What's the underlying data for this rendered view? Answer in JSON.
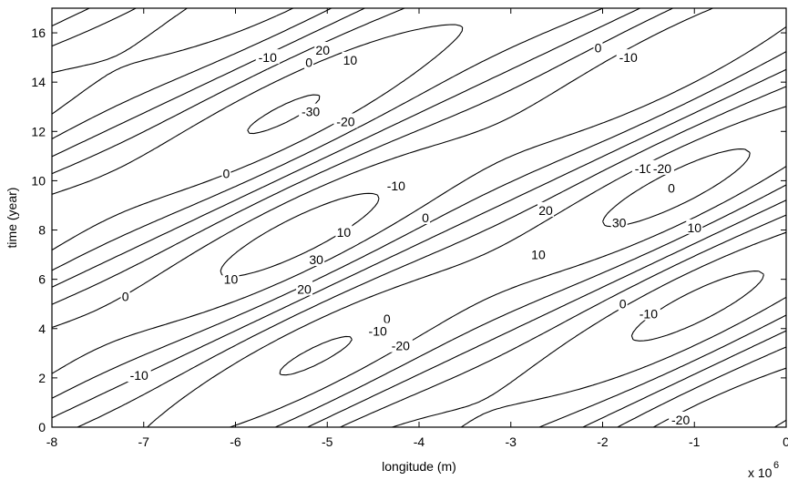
{
  "chart_data": {
    "type": "contour",
    "title": "",
    "xlabel": "longitude (m)",
    "ylabel": "time (year)",
    "x_scale_note": "x 10",
    "x_scale_exponent": "6",
    "xlim": [
      -8,
      0
    ],
    "ylim": [
      0,
      17
    ],
    "xticks": [
      "-8",
      "-7",
      "-6",
      "-5",
      "-4",
      "-3",
      "-2",
      "-1",
      "0"
    ],
    "yticks": [
      "0",
      "2",
      "4",
      "6",
      "8",
      "10",
      "12",
      "14",
      "16"
    ],
    "grid": false,
    "legend": "none",
    "line_styles": {
      "positive_and_zero": "solid",
      "negative": "dashed"
    },
    "contour_levels": [
      -30,
      -20,
      -10,
      0,
      10,
      20,
      30
    ],
    "labels": [
      {
        "text": "20",
        "x": -5.05,
        "y": 15.3
      },
      {
        "text": "0",
        "x": -5.2,
        "y": 14.8
      },
      {
        "text": "10",
        "x": -4.75,
        "y": 14.9
      },
      {
        "text": "-10",
        "x": -5.65,
        "y": 15.0
      },
      {
        "text": "-30",
        "x": -5.18,
        "y": 12.8
      },
      {
        "text": "-20",
        "x": -4.8,
        "y": 12.4
      },
      {
        "text": "0",
        "x": -6.1,
        "y": 10.3
      },
      {
        "text": "-10",
        "x": -4.25,
        "y": 9.8
      },
      {
        "text": "0",
        "x": -3.93,
        "y": 8.5
      },
      {
        "text": "10",
        "x": -4.82,
        "y": 7.9
      },
      {
        "text": "30",
        "x": -5.12,
        "y": 6.8
      },
      {
        "text": "10",
        "x": -6.05,
        "y": 6.0
      },
      {
        "text": "20",
        "x": -5.25,
        "y": 5.6
      },
      {
        "text": "0",
        "x": -7.2,
        "y": 5.3
      },
      {
        "text": "0",
        "x": -4.35,
        "y": 4.4
      },
      {
        "text": "-10",
        "x": -4.45,
        "y": 3.9
      },
      {
        "text": "-20",
        "x": -4.2,
        "y": 3.3
      },
      {
        "text": "-10",
        "x": -7.05,
        "y": 2.1
      },
      {
        "text": "0",
        "x": -2.05,
        "y": 15.4
      },
      {
        "text": "-10",
        "x": -1.72,
        "y": 15.0
      },
      {
        "text": "-10",
        "x": -1.55,
        "y": 10.5
      },
      {
        "text": "-20",
        "x": -1.35,
        "y": 10.5
      },
      {
        "text": "0",
        "x": -1.25,
        "y": 9.7
      },
      {
        "text": "20",
        "x": -2.62,
        "y": 8.8
      },
      {
        "text": "30",
        "x": -1.82,
        "y": 8.3
      },
      {
        "text": "10",
        "x": -1.0,
        "y": 8.1
      },
      {
        "text": "10",
        "x": -2.7,
        "y": 7.0
      },
      {
        "text": "0",
        "x": -1.78,
        "y": 5.0
      },
      {
        "text": "-10",
        "x": -1.5,
        "y": 4.6
      },
      {
        "text": "-20",
        "x": -1.15,
        "y": 0.3
      }
    ]
  }
}
